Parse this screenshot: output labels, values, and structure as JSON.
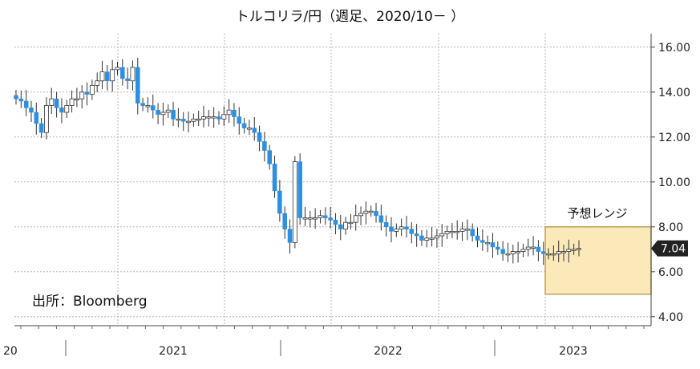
{
  "chart_data": {
    "type": "candlestick",
    "title": "トルコリラ/円（週足、2020/10－ ）",
    "source": "出所：Bloomberg",
    "xlabel": "",
    "ylabel": "",
    "ylim": [
      3.6,
      16.6
    ],
    "yticks": [
      "16.00",
      "14.00",
      "12.00",
      "10.00",
      "8.00",
      "6.00",
      "4.00"
    ],
    "xticks": [
      "20",
      "2021",
      "2022",
      "2023"
    ],
    "grid": true,
    "forecast_range": {
      "label": "予想レンジ",
      "low": 5.0,
      "high": 8.0
    },
    "last_value": "7.04",
    "colors": {
      "up": "#ffffff",
      "down": "#2d8fe0",
      "grid": "#b4b4b4",
      "box_fill": "#fbe9b9",
      "box_stroke": "#b8a25a",
      "tag": "#222222"
    },
    "close": [
      13.7,
      13.6,
      13.3,
      13.1,
      12.6,
      12.2,
      13.4,
      13.7,
      13.3,
      13.1,
      13.4,
      13.7,
      13.7,
      14.0,
      13.9,
      14.3,
      14.5,
      14.9,
      14.5,
      15.0,
      15.1,
      14.6,
      14.5,
      15.1,
      13.5,
      13.4,
      13.4,
      13.2,
      13.0,
      13.1,
      13.2,
      12.8,
      12.8,
      12.7,
      12.7,
      12.8,
      12.8,
      12.9,
      12.9,
      12.9,
      12.8,
      13.0,
      13.2,
      12.9,
      12.6,
      12.4,
      12.4,
      12.2,
      11.8,
      11.4,
      10.8,
      9.6,
      8.6,
      7.9,
      7.3,
      10.9,
      8.4,
      8.4,
      8.4,
      8.4,
      8.5,
      8.4,
      8.3,
      8.1,
      7.9,
      8.2,
      8.2,
      8.5,
      8.6,
      8.7,
      8.7,
      8.5,
      8.2,
      8.0,
      7.8,
      7.9,
      8.0,
      7.9,
      7.7,
      7.6,
      7.4,
      7.5,
      7.5,
      7.6,
      7.7,
      7.8,
      7.8,
      7.8,
      7.9,
      7.9,
      7.6,
      7.4,
      7.3,
      7.3,
      7.1,
      7.0,
      6.8,
      6.8,
      6.9,
      6.9,
      7.0,
      7.1,
      7.1,
      6.9,
      6.8,
      6.8,
      6.8,
      6.9,
      6.9,
      7.0,
      7.0,
      7.04
    ]
  }
}
